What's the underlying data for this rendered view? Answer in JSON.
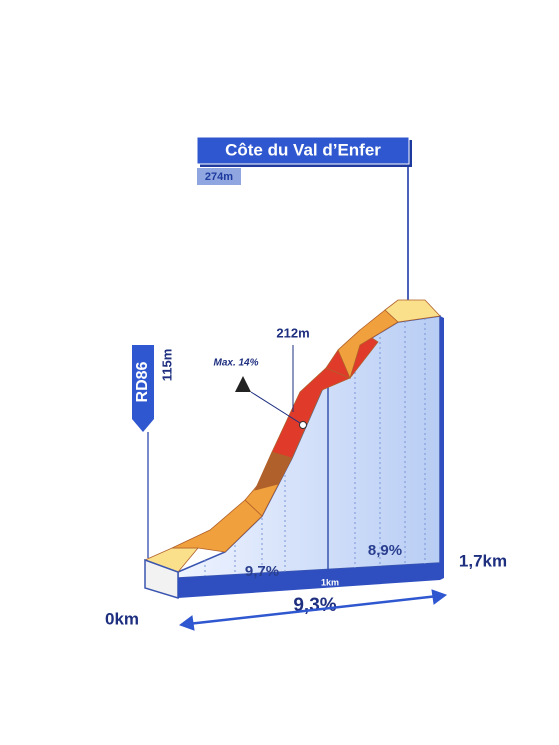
{
  "title": "Côte du Val d’Enfer",
  "summit_altitude": "274m",
  "mid_altitude": "212m",
  "max_gradient": "Max. 14%",
  "road": "RD86",
  "start_altitude": "115m",
  "segments": [
    {
      "gradient": "9,7%"
    },
    {
      "gradient": "8,9%"
    }
  ],
  "km_marker": "1km",
  "start_distance": "0km",
  "end_distance": "1,7km",
  "average_gradient": "9,3%"
}
